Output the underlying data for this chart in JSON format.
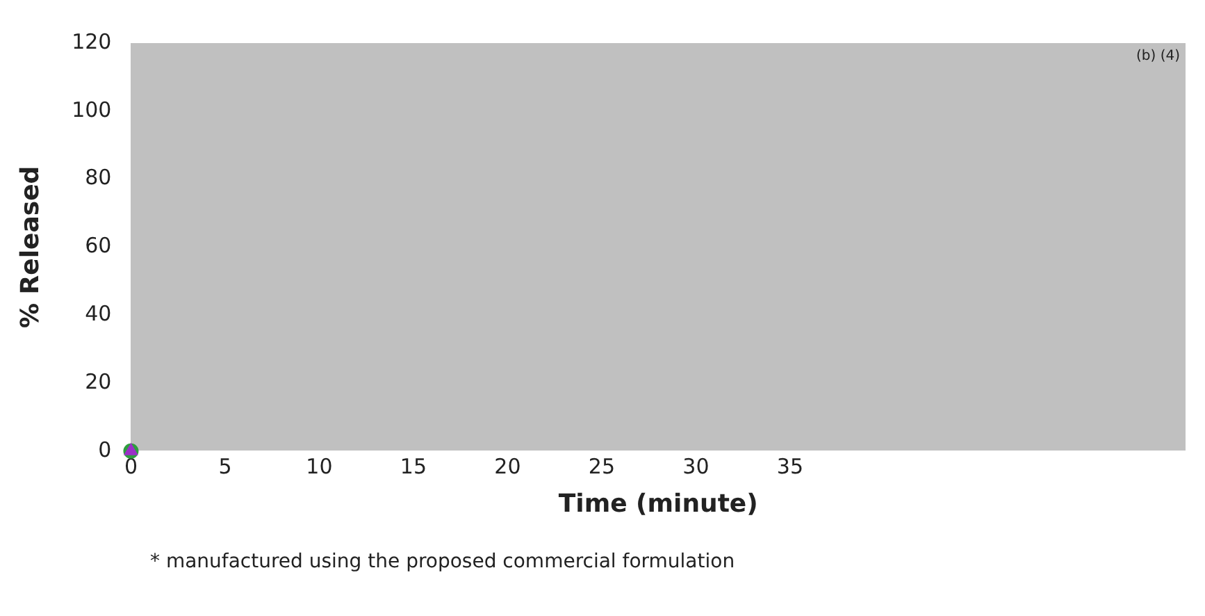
{
  "chart_data": {
    "type": "scatter",
    "xlabel": "Time (minute)",
    "ylabel": "% Released",
    "x": [
      0
    ],
    "series": [
      {
        "color": "#9b30c8",
        "values": [
          0
        ],
        "marker": "triangle"
      },
      {
        "color": "#2e9e3e",
        "values": [
          0
        ],
        "marker": "circle"
      }
    ],
    "xlim": [
      0,
      56
    ],
    "xticks": [
      0,
      5,
      10,
      15,
      20,
      25,
      30,
      35
    ],
    "ylim": [
      0,
      120
    ],
    "yticks": [
      0,
      20,
      40,
      60,
      80,
      100,
      120
    ],
    "grid": false,
    "legend": false,
    "annotations": [
      "(b) (4)",
      "* manufactured using the proposed commercial formulation"
    ]
  }
}
